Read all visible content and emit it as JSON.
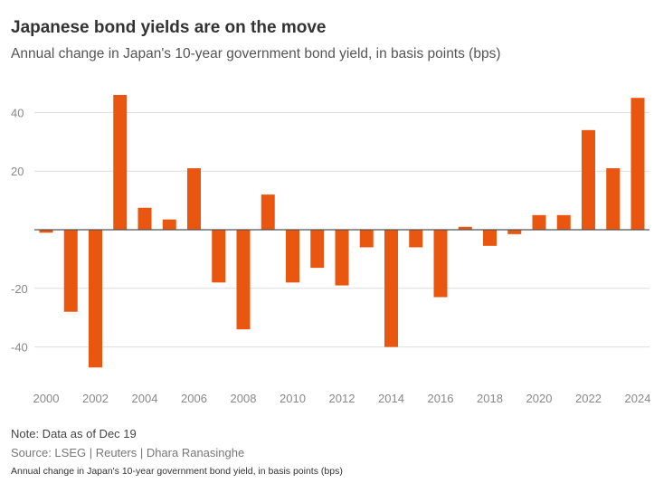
{
  "header": {
    "title": "Japanese bond yields are on the move",
    "subtitle": "Annual change in Japan's 10-year government bond yield, in basis points (bps)"
  },
  "footer": {
    "note": "Note: Data as of Dec 19",
    "source": "Source: LSEG | Reuters | Dhara Ranasinghe",
    "caption": "Annual change in Japan's 10-year government bond yield, in basis points (bps)"
  },
  "colors": {
    "bar": "#e8560f",
    "grid": "#dddddd",
    "zero": "#555555"
  },
  "chart_data": {
    "type": "bar",
    "title": "Japanese bond yields are on the move",
    "subtitle": "Annual change in Japan's 10-year government bond yield, in basis points (bps)",
    "xlabel": "",
    "ylabel": "",
    "ylim": [
      -55,
      52
    ],
    "yticks": [
      40,
      20,
      -20,
      -40
    ],
    "xticks": [
      2000,
      2002,
      2004,
      2006,
      2008,
      2010,
      2012,
      2014,
      2016,
      2018,
      2020,
      2022,
      2024
    ],
    "grid": true,
    "categories": [
      2000,
      2001,
      2002,
      2003,
      2004,
      2005,
      2006,
      2007,
      2008,
      2009,
      2010,
      2011,
      2012,
      2013,
      2014,
      2015,
      2016,
      2017,
      2018,
      2019,
      2020,
      2021,
      2022,
      2023,
      2024
    ],
    "values": [
      -1,
      -28,
      -47,
      46,
      7.5,
      3.5,
      21,
      -18,
      -34,
      12,
      -18,
      -13,
      -19,
      -6,
      -40,
      -6,
      -23,
      1,
      -5.5,
      -1.5,
      5,
      5,
      34,
      21,
      45
    ]
  }
}
